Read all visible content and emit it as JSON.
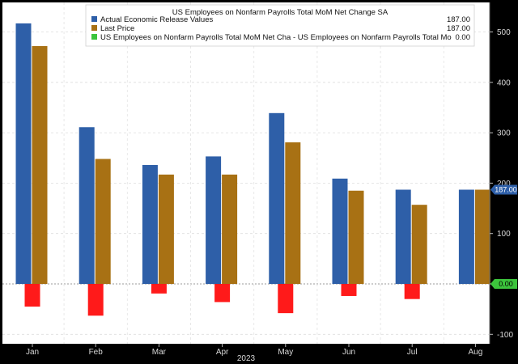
{
  "chart_data": {
    "type": "bar",
    "title": "US Employees on Nonfarm Payrolls Total MoM Net Change SA",
    "categories": [
      "Jan",
      "Feb",
      "Mar",
      "Apr",
      "May",
      "Jun",
      "Jul",
      "Aug"
    ],
    "xlabel": "2023",
    "ylabel": "",
    "ylim": [
      -100,
      500
    ],
    "yticks": [
      -100,
      0,
      100,
      200,
      300,
      400,
      500
    ],
    "grid": true,
    "legend_position": "top",
    "series": [
      {
        "name": "Actual Economic Release Values",
        "color": "#2e5fa8",
        "legend_value": "187.00",
        "values": [
          517,
          311,
          236,
          253,
          339,
          209,
          187,
          187
        ]
      },
      {
        "name": "Last Price",
        "color": "#a87114",
        "legend_value": "187.00",
        "values": [
          472,
          248,
          217,
          217,
          281,
          185,
          157,
          187
        ]
      },
      {
        "name": "US Employees on Nonfarm Payrolls Total MoM Net Cha - US Employees on Nonfarm Payrolls Total Mo",
        "color": "#ff1a1a",
        "legend_color": "#3cc43c",
        "legend_value": "0.00",
        "values": [
          -45,
          -63,
          -19,
          -36,
          -58,
          -24,
          -30,
          0
        ]
      }
    ],
    "value_badges": [
      {
        "label": "187.00",
        "value": 187,
        "color": "#2e5fa8"
      },
      {
        "label": "0.00",
        "value": 0,
        "color": "#3cc43c"
      }
    ]
  }
}
